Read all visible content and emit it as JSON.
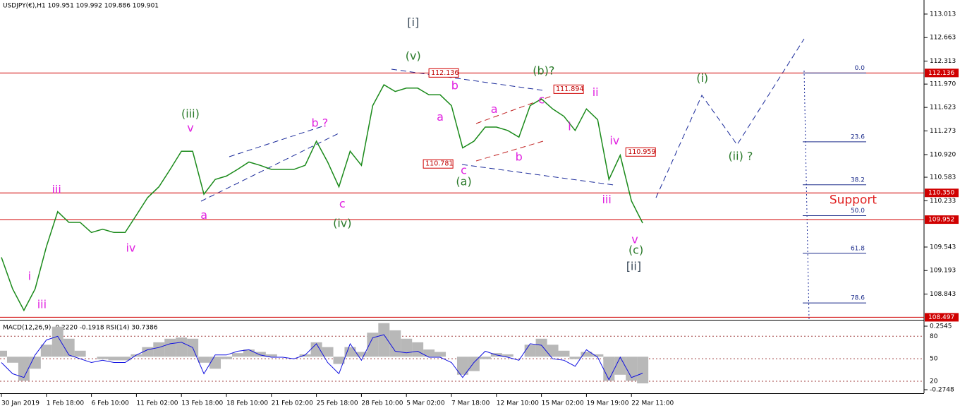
{
  "chart_data": [
    {
      "type": "line",
      "title": "USDJPY(€),H1  109.951 109.992 109.886 109.901",
      "categories": [
        "30 Jan 2019",
        null,
        null,
        null,
        "1 Feb 18:00",
        null,
        null,
        null,
        "6 Feb 10:00",
        null,
        null,
        null,
        "11 Feb 02:00",
        null,
        null,
        null,
        "13 Feb 18:00",
        null,
        null,
        null,
        "18 Feb 10:00",
        null,
        null,
        null,
        "21 Feb 02:00",
        null,
        null,
        null,
        "25 Feb 18:00",
        null,
        null,
        null,
        "28 Feb 10:00",
        null,
        null,
        null,
        "5 Mar 02:00",
        null,
        null,
        null,
        "7 Mar 18:00",
        null,
        null,
        null,
        "12 Mar 10:00",
        null,
        null,
        null,
        "15 Mar 02:00",
        null,
        null,
        null,
        "19 Mar 19:00",
        null,
        null,
        null,
        "22 Mar 11:00",
        null
      ],
      "values": [
        109.39,
        108.92,
        108.6,
        108.92,
        109.55,
        110.07,
        109.91,
        109.91,
        109.76,
        109.81,
        109.76,
        109.76,
        110.02,
        110.28,
        110.44,
        110.7,
        110.97,
        110.97,
        110.33,
        110.55,
        110.6,
        110.7,
        110.81,
        110.76,
        110.7,
        110.7,
        110.7,
        110.76,
        111.12,
        110.81,
        110.44,
        110.97,
        110.76,
        111.65,
        111.96,
        111.86,
        111.91,
        111.91,
        111.81,
        111.81,
        111.65,
        111.02,
        111.12,
        111.33,
        111.33,
        111.28,
        111.18,
        111.65,
        111.75,
        111.6,
        111.49,
        111.28,
        111.6,
        111.44,
        110.55,
        110.91,
        110.23,
        109.9
      ],
      "color": "#1a8a1a",
      "ylim": [
        108.47,
        113.17
      ],
      "yticks": [
        113.013,
        112.663,
        112.313,
        {
          "value": 111.97,
          "label": "111.970"
        },
        111.623,
        111.273,
        {
          "value": 110.92,
          "label": "110.920"
        },
        110.583,
        110.233,
        109.543,
        109.193,
        108.843
      ],
      "levels": [
        {
          "value": 112.136,
          "label": "112.136"
        },
        {
          "value": 110.35,
          "label": "110.350"
        },
        {
          "value": 109.952,
          "label": "109.952"
        },
        {
          "value": 108.497,
          "label": "108.497"
        }
      ],
      "level_color": "#d00000",
      "price_tags": [
        {
          "value": 112.136,
          "x": 38.0
        },
        {
          "value": 111.894,
          "x": 49.1
        },
        {
          "value": 110.781,
          "x": 37.5
        },
        {
          "value": 110.959,
          "x": 55.5
        }
      ],
      "fib_levels": [
        {
          "label": "0.0",
          "value": 112.136
        },
        {
          "label": "23.6",
          "value": 111.11
        },
        {
          "label": "38.2",
          "value": 110.47
        },
        {
          "label": "50.0",
          "value": 110.01
        },
        {
          "label": "61.8",
          "value": 109.45
        },
        {
          "label": "78.6",
          "value": 108.71
        }
      ],
      "annotations": [
        {
          "text": "i",
          "x": 2.5,
          "y": 109.1,
          "color": "#e020e0"
        },
        {
          "text": "iii",
          "x": 3.6,
          "y": 108.68,
          "color": "#e020e0"
        },
        {
          "text": "iii",
          "x": 4.9,
          "y": 110.39,
          "color": "#e020e0"
        },
        {
          "text": "iv",
          "x": 11.5,
          "y": 109.52,
          "color": "#e020e0"
        },
        {
          "text": "v",
          "x": 16.8,
          "y": 111.31,
          "color": "#e020e0"
        },
        {
          "text": "(iii)",
          "x": 16.8,
          "y": 111.52,
          "color": "#2a7a2a"
        },
        {
          "text": "a",
          "x": 18.0,
          "y": 110.01,
          "color": "#e020e0"
        },
        {
          "text": "b ?",
          "x": 28.3,
          "y": 111.38,
          "color": "#e020e0"
        },
        {
          "text": "c",
          "x": 30.3,
          "y": 110.18,
          "color": "#e020e0"
        },
        {
          "text": "(iv)",
          "x": 30.3,
          "y": 109.89,
          "color": "#2a7a2a"
        },
        {
          "text": "[i]",
          "x": 36.6,
          "y": 112.88,
          "color": "#3a4a5a"
        },
        {
          "text": "(v)",
          "x": 36.6,
          "y": 112.38,
          "color": "#2a7a2a"
        },
        {
          "text": "b",
          "x": 40.3,
          "y": 111.94,
          "color": "#e020e0"
        },
        {
          "text": "a",
          "x": 39.0,
          "y": 111.47,
          "color": "#e020e0"
        },
        {
          "text": "a",
          "x": 43.8,
          "y": 111.59,
          "color": "#e020e0"
        },
        {
          "text": "b",
          "x": 46.0,
          "y": 110.88,
          "color": "#e020e0"
        },
        {
          "text": "c",
          "x": 41.1,
          "y": 110.68,
          "color": "#e020e0"
        },
        {
          "text": "(a)",
          "x": 41.1,
          "y": 110.51,
          "color": "#2a7a2a"
        },
        {
          "text": "c",
          "x": 48.0,
          "y": 111.73,
          "color": "#e020e0"
        },
        {
          "text": "(b)?",
          "x": 48.2,
          "y": 112.16,
          "color": "#2a7a2a"
        },
        {
          "text": "ii",
          "x": 52.8,
          "y": 111.84,
          "color": "#e020e0"
        },
        {
          "text": "i",
          "x": 50.5,
          "y": 111.33,
          "color": "#e020e0"
        },
        {
          "text": "iv",
          "x": 54.5,
          "y": 111.12,
          "color": "#e020e0"
        },
        {
          "text": "iii",
          "x": 53.8,
          "y": 110.24,
          "color": "#e020e0"
        },
        {
          "text": "v",
          "x": 56.3,
          "y": 109.65,
          "color": "#e020e0"
        },
        {
          "text": "(c)",
          "x": 56.4,
          "y": 109.49,
          "color": "#2a7a2a"
        },
        {
          "text": "[ii]",
          "x": 56.2,
          "y": 109.25,
          "color": "#3a4a5a"
        },
        {
          "text": "(i)",
          "x": 62.3,
          "y": 112.05,
          "color": "#2a7a2a"
        },
        {
          "text": "(ii) ?",
          "x": 65.7,
          "y": 110.89,
          "color": "#2a7a2a"
        },
        {
          "text": "Support",
          "x": 75.7,
          "y": 110.24,
          "color": "#e02020"
        }
      ]
    },
    {
      "type": "line",
      "title": "MACD(12,26,9) -0.2220 -0.1918 RSI(14) 30.7386",
      "ylim": [
        5,
        100
      ],
      "yticks": [
        80,
        50,
        20
      ],
      "y2lim": [
        -0.2983,
        0.2957
      ],
      "y2ticks": [
        0.2545,
        -0.2748
      ],
      "series": [
        {
          "color": "#b8b8b8",
          "axis": "y2",
          "values": [
            0.05,
            -0.05,
            -0.2,
            -0.1,
            0.1,
            0.25,
            0.15,
            0.05,
            0,
            -0.02,
            -0.03,
            -0.03,
            0.02,
            0.08,
            0.12,
            0.15,
            0.16,
            0.15,
            -0.05,
            -0.1,
            -0.02,
            0.03,
            0.06,
            0.04,
            0.02,
            0,
            0,
            0.02,
            0.12,
            0.08,
            -0.06,
            0.08,
            0.04,
            0.2,
            0.28,
            0.22,
            0.15,
            0.12,
            0.06,
            0.04,
            0,
            -0.15,
            -0.12,
            -0.02,
            0.03,
            0.02,
            0,
            0.1,
            0.15,
            0.1,
            0.05,
            -0.02,
            0.04,
            0.02,
            -0.2,
            -0.15,
            -0.2,
            -0.222
          ]
        },
        {
          "color": "#1010e0",
          "values": [
            45,
            30,
            25,
            55,
            75,
            80,
            55,
            50,
            45,
            48,
            45,
            45,
            55,
            62,
            65,
            70,
            72,
            65,
            30,
            55,
            55,
            60,
            62,
            55,
            52,
            52,
            50,
            55,
            70,
            45,
            30,
            70,
            48,
            78,
            82,
            60,
            58,
            60,
            52,
            52,
            45,
            25,
            45,
            60,
            55,
            52,
            48,
            70,
            68,
            50,
            48,
            40,
            62,
            52,
            22,
            52,
            25,
            30.74
          ]
        }
      ]
    }
  ]
}
